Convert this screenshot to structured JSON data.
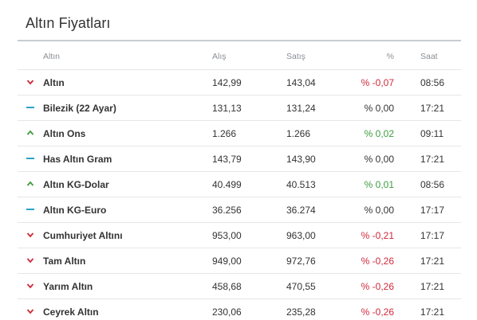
{
  "title": "Altın Fiyatları",
  "headers": {
    "name": "Altın",
    "buy": "Alış",
    "sell": "Satış",
    "pct": "%",
    "time": "Saat"
  },
  "colors": {
    "down": "#d1293b",
    "up": "#3d9c3f",
    "flat": "#2aa3c9"
  },
  "rows": [
    {
      "trend": "down",
      "icon": "chevron-down-icon",
      "name": "Altın",
      "buy": "142,99",
      "sell": "143,04",
      "pct": "% -0,07",
      "time": "08:56"
    },
    {
      "trend": "flat",
      "icon": "dash-icon",
      "name": "Bilezik (22 Ayar)",
      "buy": "131,13",
      "sell": "131,24",
      "pct": "% 0,00",
      "time": "17:21"
    },
    {
      "trend": "up",
      "icon": "chevron-up-icon",
      "name": "Altın Ons",
      "buy": "1.266",
      "sell": "1.266",
      "pct": "% 0,02",
      "time": "09:11"
    },
    {
      "trend": "flat",
      "icon": "dash-icon",
      "name": "Has Altın Gram",
      "buy": "143,79",
      "sell": "143,90",
      "pct": "% 0,00",
      "time": "17:21"
    },
    {
      "trend": "up",
      "icon": "chevron-up-icon",
      "name": "Altın KG-Dolar",
      "buy": "40.499",
      "sell": "40.513",
      "pct": "% 0,01",
      "time": "08:56"
    },
    {
      "trend": "flat",
      "icon": "dash-icon",
      "name": "Altın KG-Euro",
      "buy": "36.256",
      "sell": "36.274",
      "pct": "% 0,00",
      "time": "17:17"
    },
    {
      "trend": "down",
      "icon": "chevron-down-icon",
      "name": "Cumhuriyet Altını",
      "buy": "953,00",
      "sell": "963,00",
      "pct": "% -0,21",
      "time": "17:17"
    },
    {
      "trend": "down",
      "icon": "chevron-down-icon",
      "name": "Tam Altın",
      "buy": "949,00",
      "sell": "972,76",
      "pct": "% -0,26",
      "time": "17:21"
    },
    {
      "trend": "down",
      "icon": "chevron-down-icon",
      "name": "Yarım Altın",
      "buy": "458,68",
      "sell": "470,55",
      "pct": "% -0,26",
      "time": "17:21"
    },
    {
      "trend": "down",
      "icon": "chevron-down-icon",
      "name": "Ceyrek Altın",
      "buy": "230,06",
      "sell": "235,28",
      "pct": "% -0,26",
      "time": "17:21"
    }
  ]
}
